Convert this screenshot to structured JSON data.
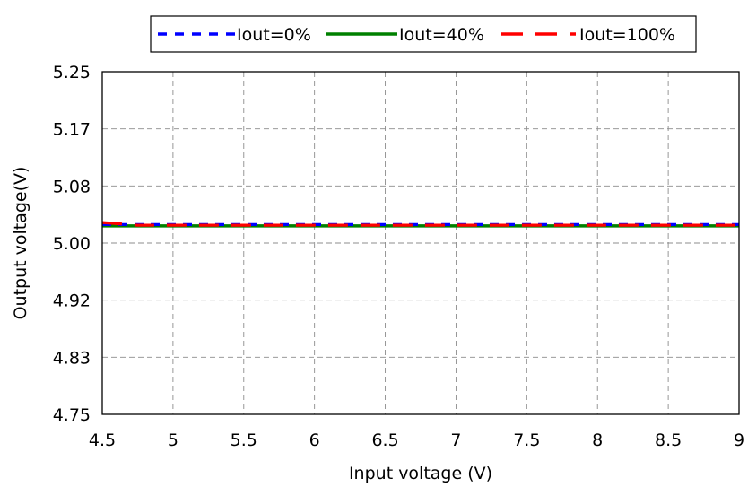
{
  "chart_data": {
    "type": "line",
    "xlabel": "Input voltage (V)",
    "ylabel": "Output voltage(V)",
    "xlim": [
      4.5,
      9
    ],
    "ylim": [
      4.75,
      5.25
    ],
    "x_ticks": [
      "4.5",
      "5",
      "5.5",
      "6",
      "6.5",
      "7",
      "7.5",
      "8",
      "8.5",
      "9"
    ],
    "y_ticks": [
      "5.25",
      "5.17",
      "5.08",
      "5.00",
      "4.92",
      "4.83",
      "4.75"
    ],
    "grid": true,
    "legend_position": "top",
    "x": [
      4.5,
      4.75,
      5,
      5.25,
      5.5,
      5.75,
      6,
      6.25,
      6.5,
      6.75,
      7,
      7.25,
      7.5,
      7.75,
      8,
      8.25,
      8.5,
      8.75,
      9
    ],
    "series": [
      {
        "name": "Iout=0%",
        "color": "#0000ff",
        "dash": "dotted",
        "values": [
          5.027,
          5.027,
          5.027,
          5.027,
          5.027,
          5.027,
          5.027,
          5.027,
          5.027,
          5.027,
          5.027,
          5.027,
          5.027,
          5.027,
          5.027,
          5.027,
          5.027,
          5.027,
          5.027
        ]
      },
      {
        "name": "Iout=40%",
        "color": "#008000",
        "dash": "solid",
        "values": [
          5.025,
          5.025,
          5.025,
          5.025,
          5.025,
          5.025,
          5.025,
          5.025,
          5.025,
          5.025,
          5.025,
          5.025,
          5.025,
          5.025,
          5.025,
          5.025,
          5.025,
          5.025,
          5.025
        ]
      },
      {
        "name": "Iout=100%",
        "color": "#ff0000",
        "dash": "dashed",
        "values": [
          5.03,
          5.026,
          5.026,
          5.026,
          5.026,
          5.026,
          5.026,
          5.026,
          5.026,
          5.026,
          5.026,
          5.026,
          5.026,
          5.026,
          5.026,
          5.026,
          5.026,
          5.026,
          5.026
        ]
      }
    ]
  }
}
